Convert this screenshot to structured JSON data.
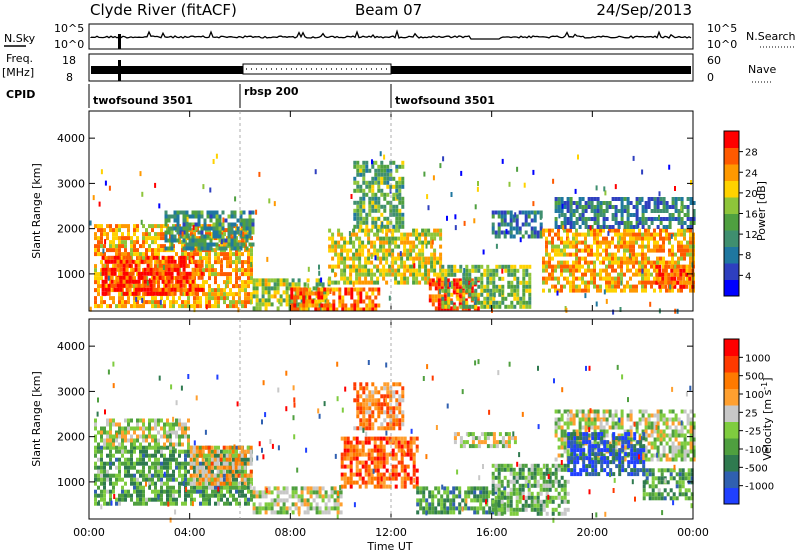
{
  "header": {
    "station": "Clyde River (fitACF)",
    "beam": "Beam 07",
    "date": "24/Sep/2013"
  },
  "strips": {
    "nsky_label": "N.Sky",
    "nsky_ticks": [
      "10^5",
      "10^0"
    ],
    "nsearch_label": "N.Search",
    "freq_label_1": "Freq.",
    "freq_label_2": "[MHz]",
    "freq_ticks": [
      "18",
      "8"
    ],
    "nave_ticks": [
      "60",
      "0"
    ],
    "nave_label": "Nave",
    "cpid_label": "CPID",
    "cpid_segments": [
      {
        "name": "twofsound 3501",
        "start": 0,
        "end": 6
      },
      {
        "name": "rbsp 200",
        "start": 6,
        "end": 12
      },
      {
        "name": "twofsound 3501",
        "start": 12,
        "end": 24
      }
    ]
  },
  "chart_data": [
    {
      "type": "heatmap",
      "panel": "power",
      "ylabel": "Slant Range [km]",
      "xlabel": "Time UT",
      "x_ticks": [
        "00:00",
        "04:00",
        "08:00",
        "12:00",
        "16:00",
        "20:00",
        "00:00"
      ],
      "x_tick_hours": [
        0,
        4,
        8,
        12,
        16,
        20,
        24
      ],
      "y_ticks": [
        1000,
        2000,
        3000,
        4000
      ],
      "ylim": [
        180,
        4600
      ],
      "xlim_hours": [
        0,
        24
      ],
      "colorbar_label": "Power [dB]",
      "colorbar_ticks": [
        "28",
        "24",
        "20",
        "16",
        "12",
        "8",
        "4"
      ],
      "colorbar_colors": [
        "#0000ff",
        "#2e3fbf",
        "#1f77a0",
        "#3f8f6f",
        "#4fa040",
        "#8ec53a",
        "#ffd200",
        "#ff9900",
        "#ff5a00",
        "#ff0000"
      ],
      "regions": [
        {
          "t0": 0.2,
          "t1": 6.5,
          "r0": 250,
          "r1": 2100,
          "level": 0.72
        },
        {
          "t0": 0.5,
          "t1": 4.5,
          "r0": 600,
          "r1": 1400,
          "level": 0.92
        },
        {
          "t0": 3.0,
          "t1": 6.5,
          "r0": 1600,
          "r1": 2400,
          "level": 0.35
        },
        {
          "t0": 6.5,
          "t1": 9.5,
          "r0": 250,
          "r1": 900,
          "level": 0.55
        },
        {
          "t0": 8.0,
          "t1": 11.5,
          "r0": 250,
          "r1": 700,
          "level": 0.82
        },
        {
          "t0": 9.5,
          "t1": 14.0,
          "r0": 800,
          "r1": 2000,
          "level": 0.62
        },
        {
          "t0": 10.5,
          "t1": 12.5,
          "r0": 2000,
          "r1": 3500,
          "level": 0.45
        },
        {
          "t0": 13.5,
          "t1": 15.5,
          "r0": 250,
          "r1": 900,
          "level": 0.9
        },
        {
          "t0": 14.0,
          "t1": 17.5,
          "r0": 300,
          "r1": 1200,
          "level": 0.5
        },
        {
          "t0": 16.0,
          "t1": 18.0,
          "r0": 1800,
          "r1": 2400,
          "level": 0.3
        },
        {
          "t0": 18.0,
          "t1": 24.0,
          "r0": 600,
          "r1": 2000,
          "level": 0.72
        },
        {
          "t0": 18.5,
          "t1": 24.0,
          "r0": 2000,
          "r1": 2700,
          "level": 0.28
        },
        {
          "t0": 22.5,
          "t1": 24.0,
          "r0": 700,
          "r1": 1200,
          "level": 0.88
        }
      ]
    },
    {
      "type": "heatmap",
      "panel": "velocity",
      "ylabel": "Slant Range [km]",
      "xlabel": "Time UT",
      "x_ticks": [
        "00:00",
        "04:00",
        "08:00",
        "12:00",
        "16:00",
        "20:00",
        "00:00"
      ],
      "x_tick_hours": [
        0,
        4,
        8,
        12,
        16,
        20,
        24
      ],
      "y_ticks": [
        1000,
        2000,
        3000,
        4000
      ],
      "ylim": [
        180,
        4600
      ],
      "xlim_hours": [
        0,
        24
      ],
      "colorbar_label": "Velocity [m s^-1]",
      "colorbar_ticks": [
        "1000",
        "500",
        "100",
        "25",
        "-25",
        "-100",
        "-500",
        "-1000"
      ],
      "colorbar_colors": [
        "#2040ff",
        "#3060b0",
        "#2f7a4f",
        "#4f9f3f",
        "#7fcc3f",
        "#c8c8c8",
        "#ffa030",
        "#ff7a00",
        "#ff3a00",
        "#ff0000"
      ],
      "regions": [
        {
          "t0": 0.2,
          "t1": 6.5,
          "r0": 500,
          "r1": 1800,
          "level": 0.35
        },
        {
          "t0": 0.2,
          "t1": 4.0,
          "r0": 1800,
          "r1": 2400,
          "level": 0.5
        },
        {
          "t0": 4.0,
          "t1": 6.5,
          "r0": 1000,
          "r1": 1800,
          "level": 0.65
        },
        {
          "t0": 6.5,
          "t1": 10.0,
          "r0": 300,
          "r1": 900,
          "level": 0.5
        },
        {
          "t0": 10.0,
          "t1": 13.0,
          "r0": 900,
          "r1": 2000,
          "level": 0.78
        },
        {
          "t0": 10.5,
          "t1": 12.5,
          "r0": 2200,
          "r1": 3200,
          "level": 0.72
        },
        {
          "t0": 13.0,
          "t1": 16.5,
          "r0": 300,
          "r1": 900,
          "level": 0.32
        },
        {
          "t0": 14.5,
          "t1": 17.0,
          "r0": 1800,
          "r1": 2100,
          "level": 0.52
        },
        {
          "t0": 16.0,
          "t1": 19.0,
          "r0": 300,
          "r1": 1400,
          "level": 0.4
        },
        {
          "t0": 18.5,
          "t1": 24.0,
          "r0": 1500,
          "r1": 2600,
          "level": 0.5
        },
        {
          "t0": 19.0,
          "t1": 22.0,
          "r0": 1200,
          "r1": 2100,
          "level": 0.12
        },
        {
          "t0": 22.0,
          "t1": 24.0,
          "r0": 600,
          "r1": 1300,
          "level": 0.33
        }
      ]
    }
  ]
}
